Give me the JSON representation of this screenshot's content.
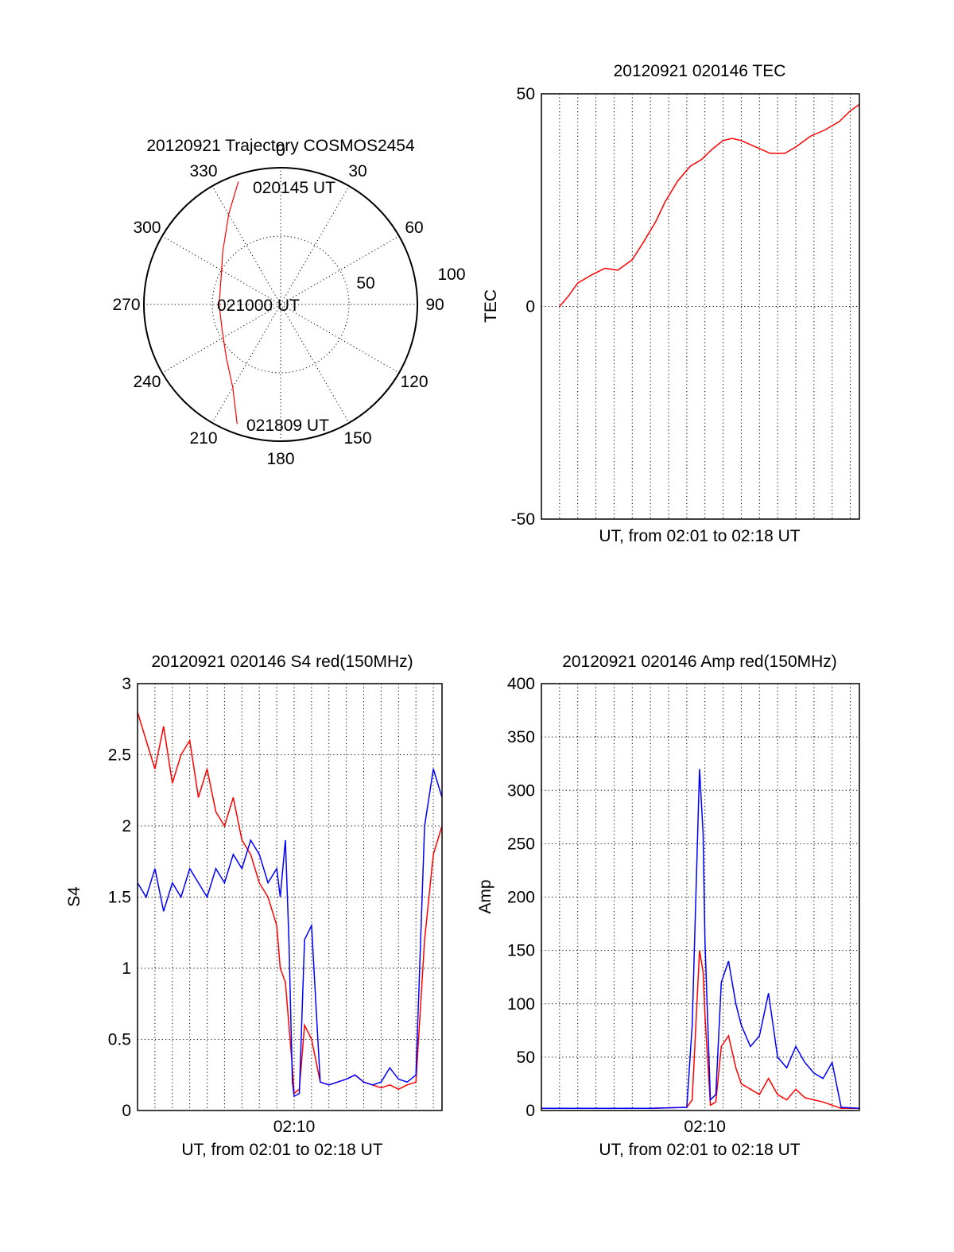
{
  "chart_data": [
    {
      "type": "polar",
      "title": "20120921 Trajectory COSMOS2454",
      "azimuth_labels": [
        "0",
        "30",
        "60",
        "90",
        "120",
        "150",
        "180",
        "210",
        "240",
        "270",
        "300",
        "330"
      ],
      "radial_labels": [
        "50",
        "100"
      ],
      "radial_max": 100,
      "grid": true,
      "series": [
        {
          "color": "#ff0000",
          "points_az_r": [
            [
              -19,
              95
            ],
            [
              -30,
              76
            ],
            [
              -48,
              57
            ],
            [
              -65,
              48
            ],
            [
              -90,
              45
            ],
            [
              -115,
              47
            ],
            [
              -135,
              56
            ],
            [
              -150,
              70
            ],
            [
              -160,
              93
            ]
          ]
        }
      ],
      "annotations": [
        {
          "text": "020145 UT",
          "az": -19,
          "r": 95
        },
        {
          "text": "021000 UT",
          "az": -90,
          "r": 45
        },
        {
          "text": "021809 UT",
          "az": -160,
          "r": 93
        }
      ]
    },
    {
      "type": "line",
      "title": "20120921 020146 TEC",
      "xlabel": "UT, from 02:01 to 02:18 UT",
      "ylabel": "TEC",
      "xlim": [
        0,
        17.5
      ],
      "ylim": [
        -50,
        50
      ],
      "yticks": [
        -50,
        0,
        50
      ],
      "xticks": [],
      "grid": true,
      "series": [
        {
          "color": "#ff0000",
          "x": [
            1.0,
            1.5,
            2.0,
            2.8,
            3.5,
            4.2,
            5.0,
            5.6,
            6.3,
            6.8,
            7.5,
            8.2,
            8.8,
            9.4,
            10.0,
            10.5,
            11.0,
            11.8,
            12.6,
            13.4,
            14.0,
            14.8,
            15.6,
            16.4,
            17.0,
            17.5
          ],
          "y": [
            0,
            2.5,
            5.5,
            7.5,
            9,
            8.5,
            11,
            15,
            20,
            24.5,
            29.5,
            33,
            34.5,
            37,
            39,
            39.5,
            39,
            37.5,
            36,
            36,
            37.5,
            40,
            41.5,
            43.5,
            46,
            47.5
          ]
        }
      ]
    },
    {
      "type": "line",
      "title": "20120921 020146 S4 red(150MHz)",
      "xlabel": "UT, from 02:01 to 02:18 UT",
      "ylabel": "S4",
      "xlim": [
        0,
        17.5
      ],
      "ylim": [
        0,
        3
      ],
      "yticks": [
        0,
        0.5,
        1,
        1.5,
        2,
        2.5,
        3
      ],
      "xticks": [
        "02:10"
      ],
      "xtick_values": [
        9
      ],
      "grid": true,
      "series": [
        {
          "color": "#ff0000",
          "x": [
            0.0,
            0.5,
            1.0,
            1.5,
            2.0,
            2.5,
            3.0,
            3.5,
            4.0,
            4.5,
            5.0,
            5.5,
            6.0,
            6.5,
            7.0,
            7.5,
            8.0,
            8.2,
            8.5,
            8.7,
            8.9,
            9.0,
            9.3,
            9.6,
            10.0,
            10.5,
            11.0,
            11.5,
            12.0,
            12.5,
            13.0,
            13.5,
            14.0,
            14.5,
            15.0,
            15.5,
            16.0,
            16.5,
            17.0,
            17.5
          ],
          "y": [
            2.8,
            2.6,
            2.4,
            2.7,
            2.3,
            2.5,
            2.6,
            2.2,
            2.4,
            2.1,
            2.0,
            2.2,
            1.9,
            1.8,
            1.6,
            1.5,
            1.3,
            1.0,
            0.9,
            0.6,
            0.3,
            0.12,
            0.15,
            0.6,
            0.5,
            0.2,
            0.18,
            0.2,
            0.22,
            0.25,
            0.2,
            0.18,
            0.16,
            0.18,
            0.15,
            0.18,
            0.2,
            1.2,
            1.8,
            2.0
          ]
        },
        {
          "color": "#0000ff",
          "x": [
            0.0,
            0.5,
            1.0,
            1.5,
            2.0,
            2.5,
            3.0,
            3.5,
            4.0,
            4.5,
            5.0,
            5.5,
            6.0,
            6.5,
            7.0,
            7.5,
            8.0,
            8.2,
            8.5,
            8.7,
            8.9,
            9.0,
            9.3,
            9.6,
            10.0,
            10.5,
            11.0,
            11.5,
            12.0,
            12.5,
            13.0,
            13.5,
            14.0,
            14.5,
            15.0,
            15.5,
            16.0,
            16.5,
            17.0,
            17.5
          ],
          "y": [
            1.6,
            1.5,
            1.7,
            1.4,
            1.6,
            1.5,
            1.7,
            1.6,
            1.5,
            1.7,
            1.6,
            1.8,
            1.7,
            1.9,
            1.8,
            1.6,
            1.7,
            1.5,
            1.9,
            1.2,
            0.2,
            0.1,
            0.12,
            1.2,
            1.3,
            0.2,
            0.18,
            0.2,
            0.22,
            0.25,
            0.2,
            0.18,
            0.2,
            0.3,
            0.22,
            0.2,
            0.25,
            2.0,
            2.4,
            2.2
          ]
        }
      ]
    },
    {
      "type": "line",
      "title": "20120921 020146 Amp red(150MHz)",
      "xlabel": "UT, from 02:01 to 02:18 UT",
      "ylabel": "Amp",
      "xlim": [
        0,
        17.5
      ],
      "ylim": [
        0,
        400
      ],
      "yticks": [
        0,
        50,
        100,
        150,
        200,
        250,
        300,
        350,
        400
      ],
      "xticks": [
        "02:10"
      ],
      "xtick_values": [
        9
      ],
      "grid": true,
      "series": [
        {
          "color": "#ff0000",
          "x": [
            0.0,
            2.0,
            4.0,
            6.0,
            8.0,
            8.3,
            8.5,
            8.7,
            8.9,
            9.0,
            9.3,
            9.6,
            9.9,
            10.3,
            10.7,
            11.0,
            11.5,
            12.0,
            12.5,
            13.0,
            13.5,
            14.0,
            14.5,
            15.0,
            15.5,
            16.0,
            16.5,
            17.5
          ],
          "y": [
            2,
            2,
            2,
            2,
            3,
            10,
            80,
            150,
            130,
            90,
            5,
            8,
            60,
            70,
            40,
            25,
            20,
            15,
            30,
            15,
            10,
            20,
            12,
            10,
            8,
            5,
            2,
            2
          ]
        },
        {
          "color": "#0000ff",
          "x": [
            0.0,
            2.0,
            4.0,
            6.0,
            8.0,
            8.3,
            8.5,
            8.7,
            8.9,
            9.0,
            9.3,
            9.6,
            9.9,
            10.3,
            10.7,
            11.0,
            11.5,
            12.0,
            12.5,
            13.0,
            13.5,
            14.0,
            14.5,
            15.0,
            15.5,
            16.0,
            16.5,
            17.5
          ],
          "y": [
            2,
            2,
            2,
            2,
            3,
            80,
            200,
            320,
            260,
            160,
            10,
            15,
            120,
            140,
            100,
            80,
            60,
            70,
            110,
            50,
            40,
            60,
            45,
            35,
            30,
            45,
            3,
            2
          ]
        }
      ]
    }
  ]
}
